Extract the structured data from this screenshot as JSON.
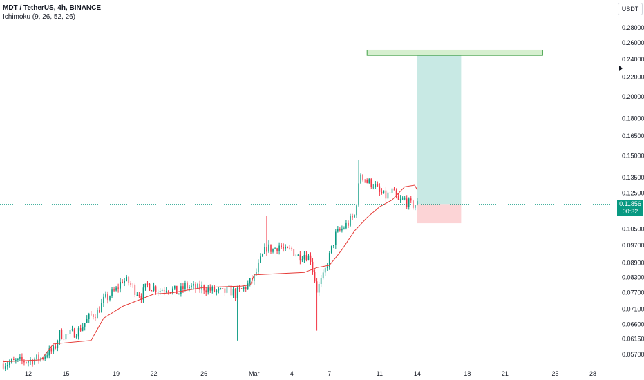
{
  "header": {
    "symbol": "MDT / TetherUS, 4h, BINANCE",
    "indicator": "Ichimoku (9, 26, 52, 26)"
  },
  "currency_button": "USDT",
  "last_price": {
    "value": "0.11856",
    "countdown": "00:32",
    "color": "#089981"
  },
  "colors": {
    "up": "#089981",
    "down": "#f23645",
    "kijun": "#e53935",
    "target_zone": "#c8e9e4",
    "stop_zone": "#fcd4d6",
    "tp_box_fill": "#d6efcf",
    "tp_box_border": "#43a047"
  },
  "chart_data": {
    "type": "candlestick",
    "scale": "log",
    "y_ticks": [
      "0.28000",
      "0.26000",
      "0.24000",
      "0.22000",
      "0.20000",
      "0.18000",
      "0.16500",
      "0.15000",
      "0.13500",
      "0.12500",
      "0.11856",
      "0.10500",
      "0.09700",
      "0.08900",
      "0.08300",
      "0.07700",
      "0.07100",
      "0.06600",
      "0.06150",
      "0.05700"
    ],
    "x_ticks": [
      "12",
      "15",
      "19",
      "22",
      "26",
      "Mar",
      "4",
      "7",
      "11",
      "14",
      "18",
      "21",
      "25",
      "28"
    ],
    "price_levels": [
      {
        "label": "0.28000",
        "v": 0.28
      },
      {
        "label": "0.26000",
        "v": 0.26
      },
      {
        "label": "0.24000",
        "v": 0.24
      },
      {
        "label": "0.22000",
        "v": 0.22
      },
      {
        "label": "0.20000",
        "v": 0.2
      },
      {
        "label": "0.18000",
        "v": 0.18
      },
      {
        "label": "0.16500",
        "v": 0.165
      },
      {
        "label": "0.15000",
        "v": 0.15
      },
      {
        "label": "0.13500",
        "v": 0.135
      },
      {
        "label": "0.12500",
        "v": 0.125
      },
      {
        "label": "0.10500",
        "v": 0.105
      },
      {
        "label": "0.09700",
        "v": 0.097
      },
      {
        "label": "0.08900",
        "v": 0.089
      },
      {
        "label": "0.08300",
        "v": 0.083
      },
      {
        "label": "0.07700",
        "v": 0.077
      },
      {
        "label": "0.07100",
        "v": 0.071
      },
      {
        "label": "0.06600",
        "v": 0.066
      },
      {
        "label": "0.06150",
        "v": 0.0615
      },
      {
        "label": "0.05700",
        "v": 0.057
      }
    ],
    "dates": [
      {
        "label": "12",
        "day": 12
      },
      {
        "label": "15",
        "day": 15
      },
      {
        "label": "19",
        "day": 19
      },
      {
        "label": "22",
        "day": 22
      },
      {
        "label": "26",
        "day": 26
      },
      {
        "label": "Mar",
        "day": 30
      },
      {
        "label": "4",
        "day": 33
      },
      {
        "label": "7",
        "day": 36
      },
      {
        "label": "11",
        "day": 40
      },
      {
        "label": "14",
        "day": 43
      },
      {
        "label": "18",
        "day": 47
      },
      {
        "label": "21",
        "day": 50
      },
      {
        "label": "25",
        "day": 54
      },
      {
        "label": "28",
        "day": 57
      }
    ],
    "close_path": [
      [
        10.0,
        0.0545
      ],
      [
        11.0,
        0.055
      ],
      [
        12.0,
        0.0553
      ],
      [
        13.0,
        0.056
      ],
      [
        13.5,
        0.0575
      ],
      [
        14.0,
        0.058
      ],
      [
        14.5,
        0.063
      ],
      [
        15.0,
        0.0625
      ],
      [
        15.5,
        0.0632
      ],
      [
        16.0,
        0.064
      ],
      [
        16.5,
        0.0665
      ],
      [
        17.0,
        0.069
      ],
      [
        17.5,
        0.07
      ],
      [
        18.0,
        0.074
      ],
      [
        18.5,
        0.076
      ],
      [
        19.0,
        0.078
      ],
      [
        19.5,
        0.082
      ],
      [
        20.0,
        0.081
      ],
      [
        20.5,
        0.078
      ],
      [
        21.0,
        0.076
      ],
      [
        21.5,
        0.08
      ],
      [
        22.0,
        0.079
      ],
      [
        22.5,
        0.078
      ],
      [
        23.0,
        0.079
      ],
      [
        23.5,
        0.078
      ],
      [
        24.0,
        0.077
      ],
      [
        24.5,
        0.0795
      ],
      [
        25.0,
        0.079
      ],
      [
        25.5,
        0.0785
      ],
      [
        26.0,
        0.079
      ],
      [
        26.5,
        0.078
      ],
      [
        27.0,
        0.0775
      ],
      [
        27.5,
        0.077
      ],
      [
        28.0,
        0.078
      ],
      [
        28.5,
        0.0765
      ],
      [
        29.0,
        0.078
      ],
      [
        29.5,
        0.08
      ],
      [
        30.0,
        0.083
      ],
      [
        30.5,
        0.09
      ],
      [
        31.0,
        0.096
      ],
      [
        31.5,
        0.095
      ],
      [
        32.0,
        0.097
      ],
      [
        32.5,
        0.094
      ],
      [
        33.0,
        0.095
      ],
      [
        33.5,
        0.092
      ],
      [
        34.0,
        0.093
      ],
      [
        34.5,
        0.091
      ],
      [
        35.0,
        0.078
      ],
      [
        35.5,
        0.083
      ],
      [
        36.0,
        0.092
      ],
      [
        36.5,
        0.102
      ],
      [
        37.0,
        0.105
      ],
      [
        37.5,
        0.108
      ],
      [
        38.0,
        0.112
      ],
      [
        38.5,
        0.138
      ],
      [
        39.0,
        0.132
      ],
      [
        39.5,
        0.131
      ],
      [
        40.0,
        0.125
      ],
      [
        40.5,
        0.123
      ],
      [
        41.0,
        0.126
      ],
      [
        41.5,
        0.12
      ],
      [
        42.0,
        0.121
      ],
      [
        42.5,
        0.118
      ],
      [
        43.0,
        0.1186
      ]
    ],
    "kijun_line": [
      [
        10.0,
        0.055
      ],
      [
        13.0,
        0.0555
      ],
      [
        14.0,
        0.06
      ],
      [
        17.0,
        0.061
      ],
      [
        18.0,
        0.068
      ],
      [
        19.5,
        0.072
      ],
      [
        22.0,
        0.0765
      ],
      [
        23.5,
        0.077
      ],
      [
        26.0,
        0.079
      ],
      [
        29.0,
        0.0795
      ],
      [
        29.7,
        0.08
      ],
      [
        30.0,
        0.084
      ],
      [
        34.0,
        0.085
      ],
      [
        35.0,
        0.087
      ],
      [
        36.0,
        0.088
      ],
      [
        36.6,
        0.092
      ],
      [
        37.0,
        0.095
      ],
      [
        38.0,
        0.104
      ],
      [
        39.0,
        0.111
      ],
      [
        40.0,
        0.117
      ],
      [
        41.0,
        0.121
      ],
      [
        42.0,
        0.129
      ],
      [
        42.8,
        0.13
      ],
      [
        43.0,
        0.127
      ]
    ],
    "last_price": 0.11856,
    "long_position": {
      "entry": 0.11856,
      "target": 0.2446,
      "stop": 0.108,
      "start_day": 43,
      "end_day": 46.5
    },
    "tp_box": {
      "low": 0.2446,
      "high": 0.251,
      "start_day": 39,
      "end_day": 53
    }
  }
}
